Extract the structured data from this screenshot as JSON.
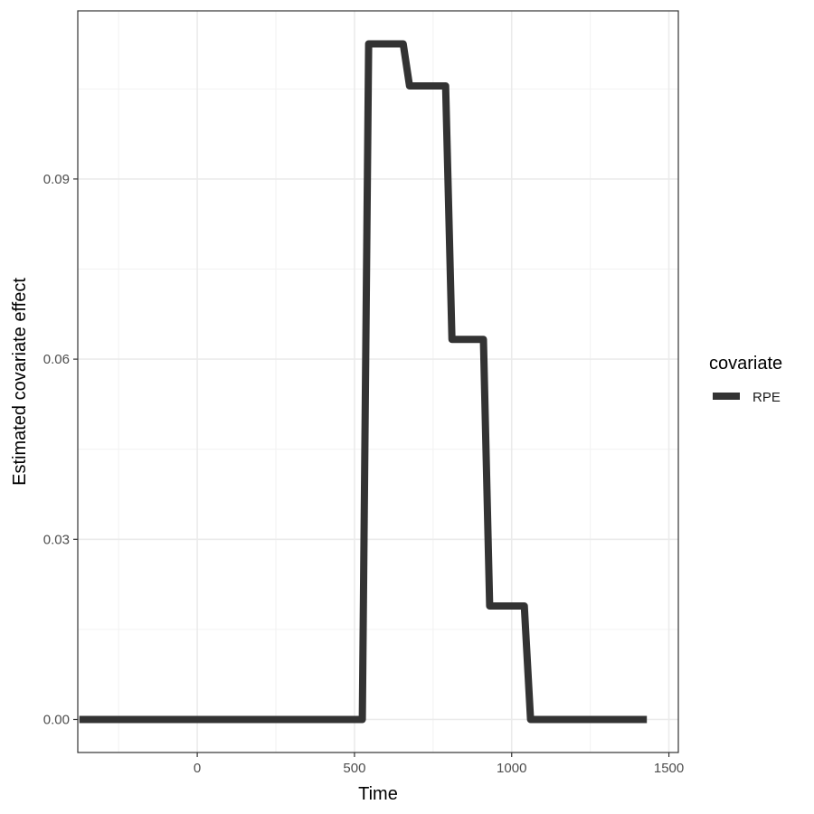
{
  "chart_data": {
    "type": "line",
    "xlabel": "Time",
    "ylabel": "Estimated covariate effect",
    "xlim": [
      -380,
      1530
    ],
    "ylim": [
      -0.0055,
      0.118
    ],
    "x_ticks": [
      0,
      500,
      1000,
      1500
    ],
    "x_tick_labels": [
      "0",
      "500",
      "1000",
      "1500"
    ],
    "y_ticks": [
      0.0,
      0.03,
      0.06,
      0.09
    ],
    "y_tick_labels": [
      "0.00",
      "0.03",
      "0.06",
      "0.09"
    ],
    "x_minor": [
      -250,
      250,
      750,
      1250
    ],
    "y_minor": [
      0.015,
      0.045,
      0.075,
      0.105
    ],
    "grid": true,
    "legend": {
      "title": "covariate",
      "position": "right"
    },
    "series": [
      {
        "name": "RPE",
        "color": "#333333",
        "points": [
          [
            -375,
            0.0
          ],
          [
            525,
            0.0
          ],
          [
            545,
            0.1125
          ],
          [
            655,
            0.1125
          ],
          [
            675,
            0.1055
          ],
          [
            790,
            0.1055
          ],
          [
            810,
            0.0633
          ],
          [
            910,
            0.0633
          ],
          [
            930,
            0.0189
          ],
          [
            1040,
            0.0189
          ],
          [
            1060,
            0.0
          ],
          [
            1430,
            0.0
          ]
        ]
      }
    ]
  }
}
